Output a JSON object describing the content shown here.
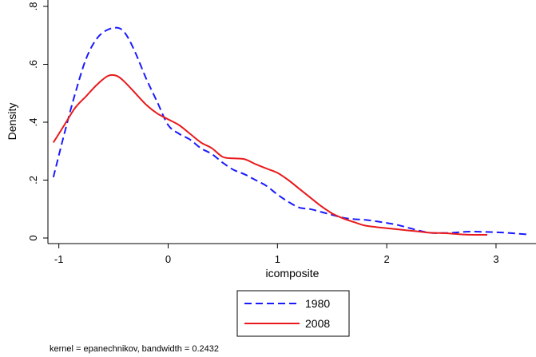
{
  "chart_data": {
    "type": "line",
    "title": "",
    "xlabel": "icomposite",
    "ylabel": "Density",
    "xlim": [
      -1.1,
      3.3
    ],
    "ylim": [
      0,
      0.8
    ],
    "xticks": [
      {
        "value": -1,
        "label": "-1"
      },
      {
        "value": 0,
        "label": "0"
      },
      {
        "value": 1,
        "label": "1"
      },
      {
        "value": 2,
        "label": "2"
      },
      {
        "value": 3,
        "label": "3"
      }
    ],
    "yticks": [
      {
        "value": 0,
        "label": "0"
      },
      {
        "value": 0.2,
        "label": ".2"
      },
      {
        "value": 0.4,
        "label": ".4"
      },
      {
        "value": 0.6,
        "label": ".6"
      },
      {
        "value": 0.8,
        "label": ".8"
      }
    ],
    "grid": false,
    "legend_position": "bottom",
    "note": "kernel = epanechnikov, bandwidth = 0.2432",
    "series": [
      {
        "name": "1980",
        "color": "#1a1aff",
        "dash": "dashed",
        "points": [
          [
            -1.05,
            0.21
          ],
          [
            -0.95,
            0.36
          ],
          [
            -0.85,
            0.5
          ],
          [
            -0.75,
            0.62
          ],
          [
            -0.65,
            0.69
          ],
          [
            -0.55,
            0.72
          ],
          [
            -0.45,
            0.725
          ],
          [
            -0.38,
            0.7
          ],
          [
            -0.3,
            0.64
          ],
          [
            -0.2,
            0.55
          ],
          [
            -0.1,
            0.47
          ],
          [
            0.0,
            0.39
          ],
          [
            0.1,
            0.36
          ],
          [
            0.2,
            0.34
          ],
          [
            0.3,
            0.31
          ],
          [
            0.4,
            0.29
          ],
          [
            0.5,
            0.26
          ],
          [
            0.6,
            0.235
          ],
          [
            0.7,
            0.22
          ],
          [
            0.8,
            0.2
          ],
          [
            0.9,
            0.18
          ],
          [
            1.0,
            0.15
          ],
          [
            1.1,
            0.125
          ],
          [
            1.2,
            0.105
          ],
          [
            1.3,
            0.1
          ],
          [
            1.4,
            0.09
          ],
          [
            1.5,
            0.08
          ],
          [
            1.6,
            0.07
          ],
          [
            1.7,
            0.065
          ],
          [
            1.8,
            0.063
          ],
          [
            1.9,
            0.058
          ],
          [
            2.0,
            0.052
          ],
          [
            2.1,
            0.045
          ],
          [
            2.2,
            0.035
          ],
          [
            2.3,
            0.025
          ],
          [
            2.4,
            0.018
          ],
          [
            2.5,
            0.017
          ],
          [
            2.6,
            0.018
          ],
          [
            2.7,
            0.021
          ],
          [
            2.8,
            0.022
          ],
          [
            2.9,
            0.021
          ],
          [
            3.0,
            0.02
          ],
          [
            3.1,
            0.018
          ],
          [
            3.2,
            0.015
          ],
          [
            3.3,
            0.012
          ]
        ]
      },
      {
        "name": "2008",
        "color": "#e8191c",
        "dash": "solid",
        "points": [
          [
            -1.05,
            0.33
          ],
          [
            -0.95,
            0.39
          ],
          [
            -0.85,
            0.45
          ],
          [
            -0.75,
            0.49
          ],
          [
            -0.65,
            0.53
          ],
          [
            -0.55,
            0.56
          ],
          [
            -0.47,
            0.56
          ],
          [
            -0.4,
            0.54
          ],
          [
            -0.3,
            0.5
          ],
          [
            -0.2,
            0.46
          ],
          [
            -0.1,
            0.43
          ],
          [
            0.0,
            0.41
          ],
          [
            0.1,
            0.39
          ],
          [
            0.2,
            0.36
          ],
          [
            0.3,
            0.33
          ],
          [
            0.4,
            0.31
          ],
          [
            0.5,
            0.28
          ],
          [
            0.6,
            0.275
          ],
          [
            0.7,
            0.272
          ],
          [
            0.8,
            0.255
          ],
          [
            0.9,
            0.24
          ],
          [
            1.0,
            0.225
          ],
          [
            1.1,
            0.2
          ],
          [
            1.2,
            0.17
          ],
          [
            1.3,
            0.14
          ],
          [
            1.4,
            0.11
          ],
          [
            1.5,
            0.085
          ],
          [
            1.6,
            0.068
          ],
          [
            1.7,
            0.055
          ],
          [
            1.8,
            0.043
          ],
          [
            1.9,
            0.038
          ],
          [
            2.0,
            0.034
          ],
          [
            2.1,
            0.03
          ],
          [
            2.2,
            0.026
          ],
          [
            2.3,
            0.022
          ],
          [
            2.4,
            0.018
          ],
          [
            2.5,
            0.017
          ],
          [
            2.6,
            0.015
          ],
          [
            2.7,
            0.012
          ],
          [
            2.8,
            0.011
          ],
          [
            2.92,
            0.011
          ]
        ]
      }
    ]
  }
}
